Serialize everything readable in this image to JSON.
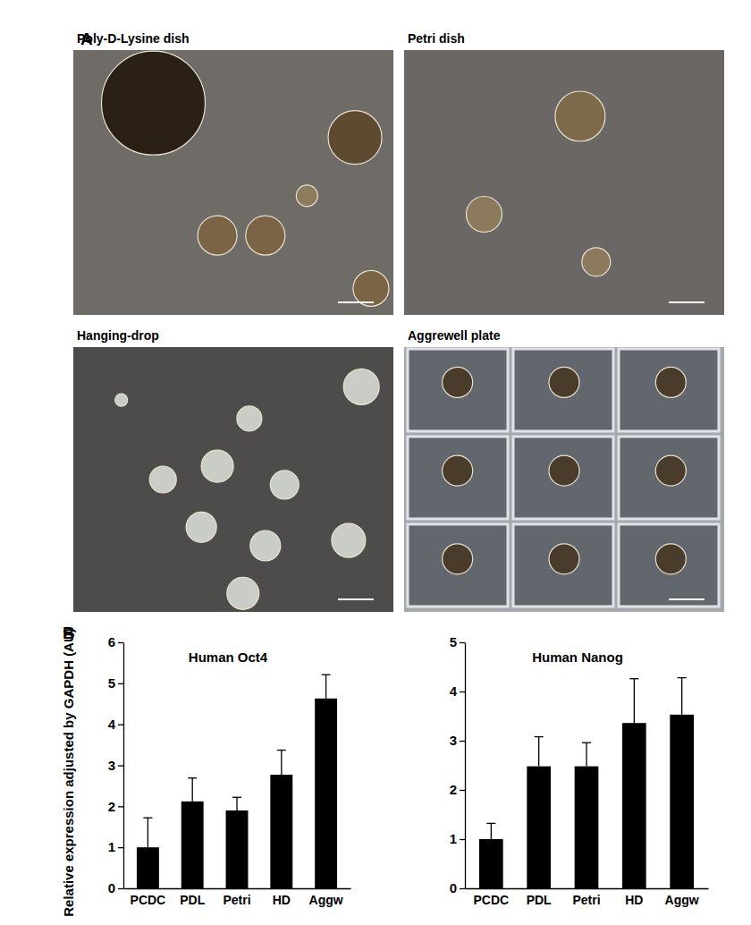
{
  "figure": {
    "panel_labels": [
      "A",
      "B"
    ],
    "images": [
      {
        "title": "Poly-D-Lysine dish"
      },
      {
        "title": "Petri dish"
      },
      {
        "title": "Hanging-drop"
      },
      {
        "title": "Aggrewell plate"
      }
    ]
  },
  "chart_data": [
    {
      "type": "bar",
      "title": "Human Oct4",
      "y_label": "Relative expression adjusted by GAPDH (AU)",
      "categories": [
        "PCDC",
        "PDL",
        "Petri",
        "HD",
        "Aggw"
      ],
      "values": [
        1.0,
        2.12,
        1.9,
        2.77,
        4.63
      ],
      "errors": [
        0.72,
        0.57,
        0.32,
        0.6,
        0.58
      ],
      "color": "#000000",
      "ylim": [
        0,
        6
      ],
      "yticks": [
        0,
        1,
        2,
        3,
        4,
        5,
        6
      ]
    },
    {
      "type": "bar",
      "title": "Human Nanog",
      "categories": [
        "PCDC",
        "PDL",
        "Petri",
        "HD",
        "Aggw"
      ],
      "values": [
        1.0,
        2.48,
        2.48,
        3.36,
        3.53
      ],
      "errors": [
        0.32,
        0.6,
        0.48,
        0.9,
        0.75
      ],
      "color": "#000000",
      "ylim": [
        0,
        5
      ],
      "yticks": [
        0,
        1,
        2,
        3,
        4,
        5
      ]
    }
  ]
}
